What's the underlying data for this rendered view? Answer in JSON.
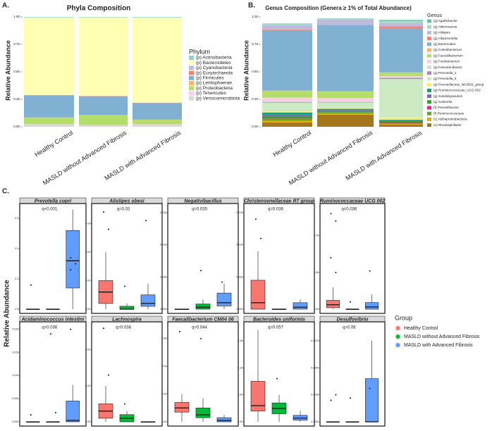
{
  "chart_data": [
    {
      "type": "stacked_bar",
      "label": "A.",
      "title": "Phyla Composition",
      "ylabel": "Relative Abundance",
      "legend_title": "Phylum",
      "categories": [
        "Healthy Control",
        "MASLD without Advanced Fibrosis",
        "MASLD with Advanced Fibrosis"
      ],
      "ylim": [
        0,
        1
      ],
      "yticks": [
        {
          "value": 0,
          "label": "0.00"
        },
        {
          "value": 0.25,
          "label": "0.25"
        },
        {
          "value": 0.5,
          "label": "0.50"
        },
        {
          "value": 0.75,
          "label": "0.75"
        },
        {
          "value": 1,
          "label": "1.00"
        }
      ],
      "series": [
        {
          "name": "(p) Actinobacteria",
          "color": "#8dd3c7",
          "values": [
            0.005,
            0.004,
            0.005
          ]
        },
        {
          "name": "(p) Bacteroidetes",
          "color": "#ffffb3",
          "values": [
            0.705,
            0.715,
            0.775
          ]
        },
        {
          "name": "(p) Cyanobacteria",
          "color": "#bebada",
          "values": [
            0.003,
            0.002,
            0.003
          ]
        },
        {
          "name": "(p) Euryarchaeota",
          "color": "#fb8072",
          "values": [
            0.002,
            0.002,
            0.002
          ]
        },
        {
          "name": "(p) Firmicutes",
          "color": "#80b1d3",
          "values": [
            0.2,
            0.17,
            0.15
          ]
        },
        {
          "name": "(p) Lentisphaerae",
          "color": "#fdb462",
          "values": [
            0.002,
            0.002,
            0.002
          ]
        },
        {
          "name": "(p) Proteobacteria",
          "color": "#b3de69",
          "values": [
            0.06,
            0.09,
            0.04
          ]
        },
        {
          "name": "(p) Tenericutes",
          "color": "#fccde5",
          "values": [
            0.003,
            0.005,
            0.003
          ]
        },
        {
          "name": "(p) Verrucomicrobiota",
          "color": "#d9d9d9",
          "values": [
            0.02,
            0.01,
            0.02
          ]
        }
      ]
    },
    {
      "type": "stacked_bar",
      "label": "B.",
      "title": "Genus Composition (Genera ≥ 1% of Total Abundance)",
      "ylabel": "Relative Abundance",
      "legend_title": "Genus",
      "categories": [
        "Healthy Control",
        "MASLD without Advanced Fibrosis",
        "MASLD with Advanced Fibrosis"
      ],
      "ylim": [
        0,
        1
      ],
      "yticks": [
        {
          "value": 0,
          "label": "0.00"
        },
        {
          "value": 0.25,
          "label": "0.25"
        },
        {
          "value": 0.5,
          "label": "0.50"
        },
        {
          "value": 0.75,
          "label": "0.75"
        },
        {
          "value": 1,
          "label": "1.00"
        }
      ],
      "series": [
        {
          "name": "(g) Agathobacter",
          "color": "#66c2a5",
          "values": [
            0.005,
            0.004,
            0.008
          ]
        },
        {
          "name": "(g) Akkermansia",
          "color": "#a6d8c8",
          "values": [
            0.01,
            0.005,
            0.02
          ]
        },
        {
          "name": "(g) Alistipes",
          "color": "#bebada",
          "values": [
            0.04,
            0.05,
            0.03
          ]
        },
        {
          "name": "(g) Alloprevotella",
          "color": "#fb8072",
          "values": [
            0.005,
            0.003,
            0.02
          ]
        },
        {
          "name": "(g) Bacteroides",
          "color": "#80b1d3",
          "values": [
            0.55,
            0.6,
            0.4
          ]
        },
        {
          "name": "(g) Catenibacterium",
          "color": "#fdb462",
          "values": [
            0.004,
            0.002,
            0.005
          ]
        },
        {
          "name": "(g) Faecalibacterium",
          "color": "#b3de69",
          "values": [
            0.06,
            0.06,
            0.03
          ]
        },
        {
          "name": "(g) Fusobacterium",
          "color": "#fccde5",
          "values": [
            0.03,
            0.03,
            0.01
          ]
        },
        {
          "name": "(g) Fusicatenibacter",
          "color": "#d9d9d9",
          "values": [
            0.01,
            0.01,
            0.005
          ]
        },
        {
          "name": "(g) Prevotella_2",
          "color": "#bc80bd",
          "values": [
            0.005,
            0.003,
            0.01
          ]
        },
        {
          "name": "(g) Prevotella_9",
          "color": "#ccebc5",
          "values": [
            0.08,
            0.05,
            0.35
          ]
        },
        {
          "name": "(g) Prevotellaceae_NK3B31_group",
          "color": "#ffed6f",
          "values": [
            0.01,
            0.005,
            0.02
          ]
        },
        {
          "name": "(g) Ruminococcaceae_UCG-002",
          "color": "#1b9e77",
          "values": [
            0.02,
            0.01,
            0.005
          ]
        },
        {
          "name": "(g) Subdoligranulum",
          "color": "#7570b3",
          "values": [
            0.02,
            0.015,
            0.005
          ]
        },
        {
          "name": "(g) Sutterella",
          "color": "#33a02c",
          "values": [
            0.01,
            0.005,
            0.01
          ]
        },
        {
          "name": "(f) Prevotellaceae",
          "color": "#e7298a",
          "values": [
            0.005,
            0.003,
            0.01
          ]
        },
        {
          "name": "(f) Ruminococcaceae",
          "color": "#66a61e",
          "values": [
            0.02,
            0.01,
            0.01
          ]
        },
        {
          "name": "(c) Alphaproteobacteria",
          "color": "#e6ab02",
          "values": [
            0.015,
            0.01,
            0.005
          ]
        },
        {
          "name": "(o) Rhodospirillales",
          "color": "#a6761d",
          "values": [
            0.04,
            0.11,
            0.02
          ]
        }
      ]
    },
    {
      "type": "box_grid",
      "label": "C.",
      "ylabel": "Relative Abundance",
      "legend_title": "Group",
      "groups": [
        {
          "name": "Healthy Control",
          "color": "#f8766d"
        },
        {
          "name": "MASLD without Advanced Fibrosis",
          "color": "#00ba38"
        },
        {
          "name": "MASLD with Advanced Fibrosis",
          "color": "#619cff"
        }
      ],
      "facets": [
        {
          "title": "Prevotella copri",
          "annotation": "q<0.001",
          "ylim": [
            0,
            0.34
          ],
          "yticks": [
            {
              "value": 0,
              "label": "0.0"
            },
            0.1,
            0.2,
            0.3
          ],
          "boxes": [
            {
              "low": 0,
              "q1": 0,
              "median": 0,
              "q3": 0,
              "high": 0,
              "points": [
                0.08
              ]
            },
            {
              "low": 0,
              "q1": 0,
              "median": 0,
              "q3": 0,
              "high": 0,
              "points": []
            },
            {
              "low": 0,
              "q1": 0.07,
              "median": 0.16,
              "q3": 0.26,
              "high": 0.33,
              "points": [
                0.13,
                0.15,
                0.17
              ]
            }
          ]
        },
        {
          "title": "Alistipes obesi",
          "annotation": "q=0.03",
          "ylim": [
            0,
            0.036
          ],
          "yticks": [
            {
              "value": 0,
              "label": "0.00"
            },
            0.01,
            0.02,
            0.03
          ],
          "boxes": [
            {
              "low": 0,
              "q1": 0.002,
              "median": 0.006,
              "q3": 0.01,
              "high": 0.02,
              "points": [
                0.034,
                0.028
              ]
            },
            {
              "low": 0,
              "q1": 0,
              "median": 0,
              "q3": 0.001,
              "high": 0.002,
              "points": [
                0.008
              ]
            },
            {
              "low": 0,
              "q1": 0.001,
              "median": 0.002,
              "q3": 0.005,
              "high": 0.009,
              "points": [
                0.031
              ]
            }
          ]
        },
        {
          "title": "Negativibacillus",
          "annotation": "q=0.035",
          "ylim": [
            0,
            0.016
          ],
          "yticks": [
            {
              "value": 0,
              "label": "0.000"
            },
            {
              "value": 0.005,
              "label": "0.005"
            },
            {
              "value": 0.01,
              "label": "0.010"
            },
            {
              "value": 0.015,
              "label": "0.015"
            }
          ],
          "boxes": [
            {
              "low": 0,
              "q1": 0,
              "median": 0,
              "q3": 0,
              "high": 0,
              "points": []
            },
            {
              "low": 0,
              "q1": 0,
              "median": 0.0003,
              "q3": 0.0008,
              "high": 0.0015,
              "points": [
                0.006
              ]
            },
            {
              "low": 0,
              "q1": 0.0005,
              "median": 0.001,
              "q3": 0.0025,
              "high": 0.004,
              "points": [
                0.0042
              ]
            }
          ]
        },
        {
          "title": "Christensenellaceae R7 group",
          "annotation": "q=0.036",
          "ylim": [
            0,
            0.016
          ],
          "yticks": [
            {
              "value": 0,
              "label": "0.000"
            },
            {
              "value": 0.005,
              "label": "0.005"
            },
            {
              "value": 0.01,
              "label": "0.010"
            },
            {
              "value": 0.015,
              "label": "0.015"
            }
          ],
          "boxes": [
            {
              "low": 0,
              "q1": 0,
              "median": 0.001,
              "q3": 0.0045,
              "high": 0.009,
              "points": [
                0.014,
                0.011
              ]
            },
            {
              "low": 0,
              "q1": 0,
              "median": 0,
              "q3": 0,
              "high": 0,
              "points": []
            },
            {
              "low": 0,
              "q1": 0,
              "median": 0.0003,
              "q3": 0.001,
              "high": 0.0015,
              "points": []
            }
          ]
        },
        {
          "title": "Ruminococcaceae UCG 002",
          "annotation": "q=0.036",
          "ylim": [
            0,
            0.14
          ],
          "yticks": [
            {
              "value": 0,
              "label": "0.00"
            },
            0.05,
            {
              "value": 0.1,
              "label": "0.10"
            }
          ],
          "boxes": [
            {
              "low": 0,
              "q1": 0.002,
              "median": 0.006,
              "q3": 0.012,
              "high": 0.03,
              "points": [
                0.13,
                0.12,
                0.07,
                0.05
              ]
            },
            {
              "low": 0,
              "q1": 0,
              "median": 0,
              "q3": 0,
              "high": 0,
              "points": [
                0.01
              ]
            },
            {
              "low": 0,
              "q1": 0,
              "median": 0.003,
              "q3": 0.009,
              "high": 0.02,
              "points": [
                0.052
              ]
            }
          ]
        },
        {
          "title": "Acidaminococcus intestini",
          "annotation": "q=0.036",
          "ylim": [
            0,
            0.021
          ],
          "yticks": [
            {
              "value": 0,
              "label": "0.000"
            },
            0.005,
            {
              "value": 0.01,
              "label": "0.010"
            },
            0.015,
            {
              "value": 0.02,
              "label": "0.020"
            }
          ],
          "boxes": [
            {
              "low": 0,
              "q1": 0,
              "median": 0,
              "q3": 0,
              "high": 0,
              "points": [
                0.0015
              ]
            },
            {
              "low": 0,
              "q1": 0,
              "median": 0,
              "q3": 0,
              "high": 0,
              "points": [
                0.019,
                0.002
              ]
            },
            {
              "low": 0,
              "q1": 0,
              "median": 0.0003,
              "q3": 0.0045,
              "high": 0.008,
              "points": [
                0.02
              ]
            }
          ]
        },
        {
          "title": "Lachnospira",
          "annotation": "q=0.038",
          "ylim": [
            0,
            0.027
          ],
          "yticks": [
            {
              "value": 0,
              "label": "0.00"
            },
            0.01,
            0.02
          ],
          "boxes": [
            {
              "low": 0,
              "q1": 0.001,
              "median": 0.003,
              "q3": 0.005,
              "high": 0.01,
              "points": [
                0.026,
                0.013
              ]
            },
            {
              "low": 0,
              "q1": 0,
              "median": 0.001,
              "q3": 0.002,
              "high": 0.003,
              "points": [
                0.005
              ]
            },
            {
              "low": 0,
              "q1": 0,
              "median": 0,
              "q3": 0,
              "high": 0,
              "points": []
            }
          ]
        },
        {
          "title": "Faecalibacterium CM04 06",
          "annotation": "q=0.044",
          "ylim": [
            0,
            0.07
          ],
          "yticks": [
            {
              "value": 0,
              "label": "0.00"
            },
            0.02,
            0.04,
            0.06
          ],
          "boxes": [
            {
              "low": 0,
              "q1": 0.007,
              "median": 0.01,
              "q3": 0.014,
              "high": 0.02,
              "points": [
                0.065
              ]
            },
            {
              "low": 0,
              "q1": 0.003,
              "median": 0.005,
              "q3": 0.01,
              "high": 0.017,
              "points": [
                0.06
              ]
            },
            {
              "low": 0,
              "q1": 0,
              "median": 0.001,
              "q3": 0.003,
              "high": 0.005,
              "points": []
            }
          ]
        },
        {
          "title": "Bacteroides uniformis",
          "annotation": "q=0.057",
          "ylim": [
            0,
            0.18
          ],
          "yticks": [
            {
              "value": 0,
              "label": "0.00"
            },
            0.05,
            {
              "value": 0.1,
              "label": "0.10"
            },
            0.15
          ],
          "boxes": [
            {
              "low": 0,
              "q1": 0.02,
              "median": 0.03,
              "q3": 0.075,
              "high": 0.17,
              "points": []
            },
            {
              "low": 0,
              "q1": 0.015,
              "median": 0.025,
              "q3": 0.035,
              "high": 0.05,
              "points": [
                0.08
              ]
            },
            {
              "low": 0,
              "q1": 0.003,
              "median": 0.007,
              "q3": 0.012,
              "high": 0.02,
              "points": []
            }
          ]
        },
        {
          "title": "Desulfovibrio",
          "annotation": "q=0.08",
          "ylim": [
            0,
            0.009
          ],
          "yticks": [
            {
              "value": 0,
              "label": "0.0000"
            },
            0.0025,
            {
              "value": 0.005,
              "label": "0.0050"
            },
            0.0075
          ],
          "boxes": [
            {
              "low": 0,
              "q1": 0,
              "median": 0,
              "q3": 0,
              "high": 0,
              "points": [
                0.002,
                0.0025
              ]
            },
            {
              "low": 0,
              "q1": 0,
              "median": 0,
              "q3": 0,
              "high": 0,
              "points": [
                0.0022
              ]
            },
            {
              "low": 0,
              "q1": 0,
              "median": 0,
              "q3": 0.004,
              "high": 0.0075,
              "points": [
                0.0031
              ]
            }
          ]
        }
      ]
    }
  ]
}
